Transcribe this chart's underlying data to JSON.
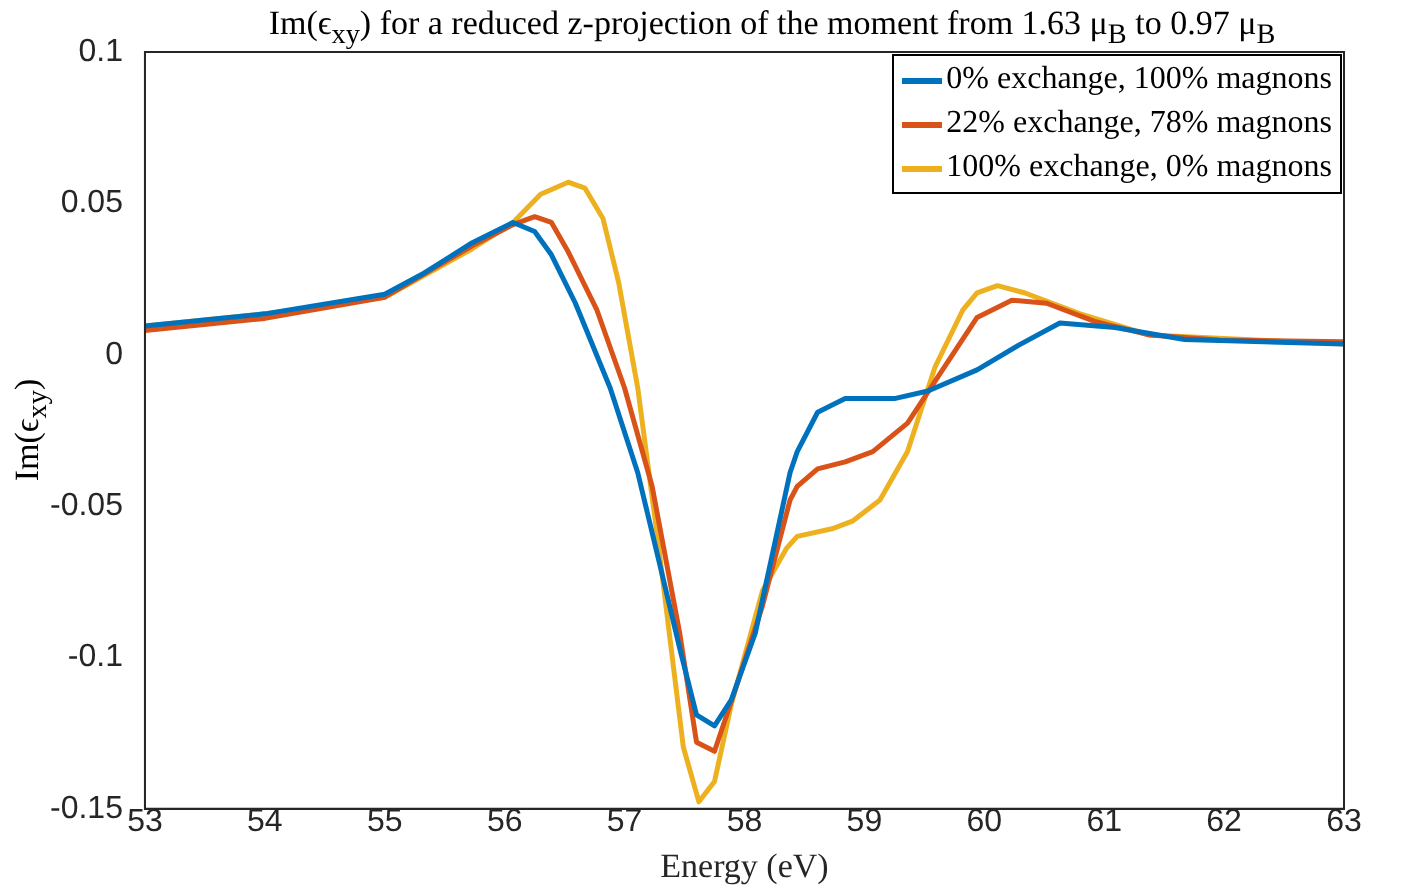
{
  "chart_data": {
    "type": "line",
    "title": "Im(ϵ$_{xy}$) for a reduced z-projection of the moment from 1.63 μ$_{B}$ to 0.97 μ$_{B}$",
    "xlabel": "Energy (eV)",
    "ylabel": "Im(ϵ$_{xy}$)",
    "xlim": [
      53,
      63
    ],
    "xticks": [
      53,
      54,
      55,
      56,
      57,
      58,
      59,
      60,
      61,
      62,
      63
    ],
    "ylim": [
      -0.15,
      0.1
    ],
    "yticks": [
      -0.15,
      -0.1,
      -0.05,
      0,
      0.05,
      0.1
    ],
    "grid": false,
    "legend": "top right",
    "marker": "none",
    "line_style": "solid",
    "series": [
      {
        "name": "0% exchange, 100% magnons",
        "color": "#0072bd",
        "x": [
          53,
          54,
          55,
          55.33,
          55.73,
          56.07,
          56.25,
          56.39,
          56.59,
          56.88,
          57.11,
          57.28,
          57.46,
          57.6,
          57.75,
          57.89,
          58.09,
          58.38,
          58.44,
          58.61,
          58.84,
          59.25,
          59.53,
          59.94,
          60.28,
          60.63,
          61.09,
          61.67,
          63
        ],
        "values": [
          0.0095,
          0.0135,
          0.02,
          0.027,
          0.037,
          0.0437,
          0.0407,
          0.033,
          0.017,
          -0.011,
          -0.039,
          -0.067,
          -0.097,
          -0.119,
          -0.1226,
          -0.114,
          -0.092,
          -0.039,
          -0.032,
          -0.019,
          -0.0145,
          -0.0145,
          -0.012,
          -0.005,
          0.003,
          0.0105,
          0.009,
          0.005,
          0.0035
        ]
      },
      {
        "name": "22% exchange, 78% magnons",
        "color": "#d95319",
        "x": [
          53,
          54,
          55,
          55.73,
          56.07,
          56.25,
          56.39,
          56.53,
          56.77,
          57,
          57.23,
          57.46,
          57.6,
          57.75,
          57.92,
          58.15,
          58.38,
          58.44,
          58.61,
          58.84,
          59.07,
          59.36,
          59.59,
          59.94,
          60.23,
          60.52,
          60.92,
          61.38,
          61.96,
          63
        ],
        "values": [
          0.008,
          0.012,
          0.019,
          0.036,
          0.043,
          0.0456,
          0.0437,
          0.034,
          0.0147,
          -0.011,
          -0.0435,
          -0.092,
          -0.128,
          -0.131,
          -0.111,
          -0.083,
          -0.048,
          -0.0435,
          -0.0377,
          -0.0354,
          -0.032,
          -0.0226,
          -0.0087,
          0.0123,
          0.018,
          0.017,
          0.011,
          0.0065,
          0.0049,
          0.0043
        ]
      },
      {
        "name": "100% exchange, 0% magnons",
        "color": "#edb120",
        "x": [
          53,
          54,
          55,
          55.73,
          56.07,
          56.3,
          56.53,
          56.67,
          56.82,
          56.95,
          57.11,
          57.28,
          57.49,
          57.62,
          57.75,
          57.89,
          58.15,
          58.35,
          58.44,
          58.73,
          58.9,
          59.13,
          59.36,
          59.59,
          59.82,
          59.94,
          60.11,
          60.34,
          60.8,
          61.38,
          63
        ],
        "values": [
          0.0095,
          0.0135,
          0.019,
          0.035,
          0.0437,
          0.053,
          0.057,
          0.055,
          0.045,
          0.024,
          -0.011,
          -0.062,
          -0.1296,
          -0.1477,
          -0.141,
          -0.1156,
          -0.078,
          -0.064,
          -0.06,
          -0.0575,
          -0.055,
          -0.048,
          -0.032,
          -0.004,
          0.0147,
          0.0204,
          0.0228,
          0.0204,
          0.0135,
          0.0065,
          0.0035
        ]
      }
    ]
  }
}
